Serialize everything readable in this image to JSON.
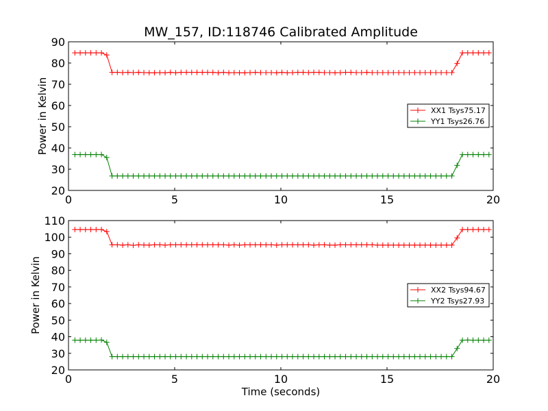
{
  "chart_data": {
    "title": "MW_157, ID:118746 Calibrated Amplitude",
    "colors": {
      "red": "#ff0000",
      "green": "#007f00"
    },
    "xlabel": "Time (seconds)",
    "panels": [
      {
        "type": "line",
        "ylabel": "Power in Kelvin",
        "xlim": [
          0,
          20
        ],
        "ylim": [
          20,
          90
        ],
        "xticks": [
          0,
          5,
          10,
          15,
          20
        ],
        "yticks": [
          20,
          30,
          40,
          50,
          60,
          70,
          80,
          90
        ],
        "legend_position": "center-right",
        "series": [
          {
            "name": "XX1 Tsys75.17",
            "color": "#ff0000",
            "x": [
              0.3,
              0.55,
              0.8,
              1.05,
              1.3,
              1.55,
              1.8,
              2.05,
              2.3,
              2.55,
              2.8,
              3.05,
              3.3,
              3.55,
              3.8,
              4.05,
              4.3,
              4.55,
              4.8,
              5.05,
              5.3,
              5.55,
              5.8,
              6.05,
              6.3,
              6.55,
              6.8,
              7.05,
              7.3,
              7.55,
              7.8,
              8.05,
              8.3,
              8.55,
              8.8,
              9.05,
              9.3,
              9.55,
              9.8,
              10.05,
              10.3,
              10.55,
              10.8,
              11.05,
              11.3,
              11.55,
              11.8,
              12.05,
              12.3,
              12.55,
              12.8,
              13.05,
              13.3,
              13.55,
              13.8,
              14.05,
              14.3,
              14.55,
              14.8,
              15.05,
              15.3,
              15.55,
              15.8,
              16.05,
              16.3,
              16.55,
              16.8,
              17.05,
              17.3,
              17.55,
              17.8,
              18.05,
              18.3,
              18.55,
              18.8,
              19.05,
              19.3,
              19.55,
              19.8
            ],
            "y": [
              84.8,
              84.8,
              84.8,
              84.8,
              84.8,
              84.8,
              83.8,
              75.6,
              75.6,
              75.5,
              75.6,
              75.5,
              75.6,
              75.5,
              75.4,
              75.4,
              75.5,
              75.4,
              75.6,
              75.4,
              75.6,
              75.6,
              75.6,
              75.6,
              75.6,
              75.6,
              75.6,
              75.4,
              75.6,
              75.4,
              75.5,
              75.4,
              75.4,
              75.5,
              75.6,
              75.5,
              75.5,
              75.5,
              75.4,
              75.6,
              75.4,
              75.5,
              75.6,
              75.6,
              75.5,
              75.6,
              75.6,
              75.5,
              75.5,
              75.4,
              75.5,
              75.6,
              75.6,
              75.5,
              75.5,
              75.6,
              75.5,
              75.5,
              75.5,
              75.5,
              75.5,
              75.5,
              75.5,
              75.5,
              75.5,
              75.5,
              75.5,
              75.5,
              75.5,
              75.5,
              75.5,
              75.5,
              79.8,
              84.8,
              84.8,
              84.8,
              84.8,
              84.8,
              84.8
            ]
          },
          {
            "name": "YY1 Tsys26.76",
            "color": "#007f00",
            "x": [
              0.3,
              0.55,
              0.8,
              1.05,
              1.3,
              1.55,
              1.8,
              2.05,
              2.3,
              2.55,
              2.8,
              3.05,
              3.3,
              3.55,
              3.8,
              4.05,
              4.3,
              4.55,
              4.8,
              5.05,
              5.3,
              5.55,
              5.8,
              6.05,
              6.3,
              6.55,
              6.8,
              7.05,
              7.3,
              7.55,
              7.8,
              8.05,
              8.3,
              8.55,
              8.8,
              9.05,
              9.3,
              9.55,
              9.8,
              10.05,
              10.3,
              10.55,
              10.8,
              11.05,
              11.3,
              11.55,
              11.8,
              12.05,
              12.3,
              12.55,
              12.8,
              13.05,
              13.3,
              13.55,
              13.8,
              14.05,
              14.3,
              14.55,
              14.8,
              15.05,
              15.3,
              15.55,
              15.8,
              16.05,
              16.3,
              16.55,
              16.8,
              17.05,
              17.3,
              17.55,
              17.8,
              18.05,
              18.3,
              18.55,
              18.8,
              19.05,
              19.3,
              19.55,
              19.8
            ],
            "y": [
              36.9,
              36.9,
              36.9,
              36.9,
              36.9,
              36.9,
              35.5,
              26.8,
              26.8,
              26.8,
              26.8,
              26.8,
              26.8,
              26.8,
              26.8,
              26.8,
              26.8,
              26.8,
              26.8,
              26.8,
              26.8,
              26.8,
              26.8,
              26.8,
              26.8,
              26.8,
              26.8,
              26.8,
              26.8,
              26.8,
              26.8,
              26.8,
              26.8,
              26.8,
              26.8,
              26.8,
              26.8,
              26.8,
              26.8,
              26.8,
              26.8,
              26.8,
              26.8,
              26.8,
              26.8,
              26.8,
              26.8,
              26.8,
              26.8,
              26.8,
              26.8,
              26.8,
              26.8,
              26.8,
              26.8,
              26.8,
              26.8,
              26.8,
              26.8,
              26.8,
              26.8,
              26.8,
              26.8,
              26.8,
              26.8,
              26.8,
              26.8,
              26.8,
              26.8,
              26.8,
              26.8,
              26.8,
              31.8,
              36.9,
              36.9,
              36.9,
              36.9,
              36.9,
              36.9
            ]
          }
        ]
      },
      {
        "type": "line",
        "ylabel": "Power in Kelvin",
        "xlim": [
          0,
          20
        ],
        "ylim": [
          20,
          110
        ],
        "xticks": [
          0,
          5,
          10,
          15,
          20
        ],
        "yticks": [
          20,
          30,
          40,
          50,
          60,
          70,
          80,
          90,
          100,
          110
        ],
        "legend_position": "center-right",
        "series": [
          {
            "name": "XX2 Tsys94.67",
            "color": "#ff0000",
            "x": [
              0.3,
              0.55,
              0.8,
              1.05,
              1.3,
              1.55,
              1.8,
              2.05,
              2.3,
              2.55,
              2.8,
              3.05,
              3.3,
              3.55,
              3.8,
              4.05,
              4.3,
              4.55,
              4.8,
              5.05,
              5.3,
              5.55,
              5.8,
              6.05,
              6.3,
              6.55,
              6.8,
              7.05,
              7.3,
              7.55,
              7.8,
              8.05,
              8.3,
              8.55,
              8.8,
              9.05,
              9.3,
              9.55,
              9.8,
              10.05,
              10.3,
              10.55,
              10.8,
              11.05,
              11.3,
              11.55,
              11.8,
              12.05,
              12.3,
              12.55,
              12.8,
              13.05,
              13.3,
              13.55,
              13.8,
              14.05,
              14.3,
              14.55,
              14.8,
              15.05,
              15.3,
              15.55,
              15.8,
              16.05,
              16.3,
              16.55,
              16.8,
              17.05,
              17.3,
              17.55,
              17.8,
              18.05,
              18.3,
              18.55,
              18.8,
              19.05,
              19.3,
              19.55,
              19.8
            ],
            "y": [
              104.6,
              104.6,
              104.6,
              104.6,
              104.6,
              104.6,
              103.4,
              95.4,
              95.4,
              95.2,
              95.4,
              95.1,
              95.4,
              95.3,
              95.2,
              95.4,
              95.4,
              95.2,
              95.4,
              95.4,
              95.4,
              95.4,
              95.4,
              95.4,
              95.4,
              95.4,
              95.4,
              95.4,
              95.4,
              95.2,
              95.4,
              95.2,
              95.4,
              95.4,
              95.4,
              95.4,
              95.4,
              95.4,
              95.2,
              95.4,
              95.4,
              95.4,
              95.4,
              95.4,
              95.4,
              95.2,
              95.4,
              95.4,
              95.2,
              95.2,
              95.4,
              95.4,
              95.4,
              95.4,
              95.4,
              95.4,
              95.4,
              95.2,
              95.2,
              95.2,
              95.2,
              95.2,
              95.2,
              95.2,
              95.2,
              95.2,
              95.2,
              95.2,
              95.2,
              95.2,
              95.2,
              95.2,
              99.6,
              104.6,
              104.6,
              104.6,
              104.6,
              104.6,
              104.6
            ]
          },
          {
            "name": "YY2 Tsys27.93",
            "color": "#007f00",
            "x": [
              0.3,
              0.55,
              0.8,
              1.05,
              1.3,
              1.55,
              1.8,
              2.05,
              2.3,
              2.55,
              2.8,
              3.05,
              3.3,
              3.55,
              3.8,
              4.05,
              4.3,
              4.55,
              4.8,
              5.05,
              5.3,
              5.55,
              5.8,
              6.05,
              6.3,
              6.55,
              6.8,
              7.05,
              7.3,
              7.55,
              7.8,
              8.05,
              8.3,
              8.55,
              8.8,
              9.05,
              9.3,
              9.55,
              9.8,
              10.05,
              10.3,
              10.55,
              10.8,
              11.05,
              11.3,
              11.55,
              11.8,
              12.05,
              12.3,
              12.55,
              12.8,
              13.05,
              13.3,
              13.55,
              13.8,
              14.05,
              14.3,
              14.55,
              14.8,
              15.05,
              15.3,
              15.55,
              15.8,
              16.05,
              16.3,
              16.55,
              16.8,
              17.05,
              17.3,
              17.55,
              17.8,
              18.05,
              18.3,
              18.55,
              18.8,
              19.05,
              19.3,
              19.55,
              19.8
            ],
            "y": [
              37.9,
              37.9,
              37.9,
              37.9,
              37.9,
              38.0,
              36.6,
              28.0,
              28.0,
              28.0,
              28.0,
              28.0,
              28.0,
              28.0,
              28.0,
              28.0,
              28.0,
              28.0,
              28.0,
              28.0,
              28.0,
              28.0,
              28.0,
              28.0,
              28.0,
              28.0,
              28.0,
              28.0,
              28.0,
              28.0,
              28.0,
              28.0,
              28.0,
              28.0,
              28.0,
              28.0,
              28.0,
              28.0,
              28.0,
              28.0,
              28.0,
              28.0,
              28.0,
              28.0,
              28.0,
              28.0,
              28.0,
              28.0,
              28.0,
              28.0,
              28.0,
              28.0,
              28.0,
              28.0,
              28.0,
              28.0,
              28.0,
              28.0,
              28.0,
              28.0,
              28.0,
              28.0,
              28.0,
              28.0,
              28.0,
              28.0,
              28.0,
              28.0,
              28.0,
              28.0,
              28.0,
              28.0,
              32.9,
              37.9,
              38.0,
              37.9,
              37.9,
              37.9,
              37.9
            ]
          }
        ]
      }
    ]
  }
}
